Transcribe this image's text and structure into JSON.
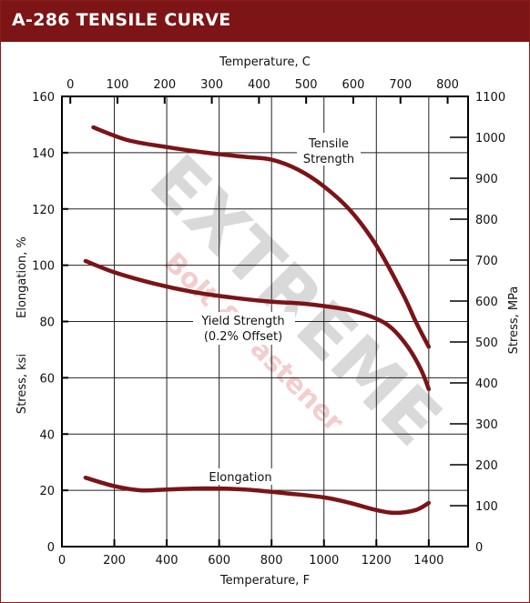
{
  "header": {
    "title": "A-286 TENSILE CURVE"
  },
  "watermark": {
    "brand": "EXTREME",
    "sub": "Bolt & Fastener"
  },
  "chart_data": {
    "type": "line",
    "title": "A-286 TENSILE CURVE",
    "x_bottom": {
      "label": "Temperature,  F",
      "ticks": [
        "0",
        "200",
        "400",
        "600",
        "800",
        "1000",
        "1200",
        "1400"
      ],
      "range": [
        0,
        1550
      ]
    },
    "x_top": {
      "label": "Temperature,  C",
      "ticks": [
        "0",
        "100",
        "200",
        "300",
        "400",
        "500",
        "600",
        "700",
        "800"
      ]
    },
    "y_left": {
      "label_elongation": "Elongation, %",
      "label_stress": "Stress, ksi",
      "ticks": [
        "0",
        "20",
        "40",
        "60",
        "80",
        "100",
        "120",
        "140",
        "160"
      ],
      "range": [
        0,
        160
      ]
    },
    "y_right": {
      "label": "Stress, MPa",
      "ticks": [
        "0",
        "100",
        "200",
        "300",
        "400",
        "500",
        "600",
        "700",
        "800",
        "900",
        "1000",
        "1100"
      ],
      "range": [
        0,
        1100
      ]
    },
    "grid": true,
    "annotations": {
      "tensile_1": "Tensile",
      "tensile_2": "Strength",
      "yield_1": "Yield Strength",
      "yield_2": "(0.2% Offset)",
      "elongation": "Elongation"
    },
    "series": [
      {
        "key": "tensile",
        "color": "#7b1417",
        "x": [
          120,
          250,
          400,
          550,
          700,
          800,
          900,
          1000,
          1100,
          1200,
          1300,
          1350,
          1400
        ],
        "y": [
          149,
          144.5,
          142,
          140,
          138.5,
          137.5,
          134,
          128,
          119.5,
          107,
          90,
          80,
          71
        ]
      },
      {
        "key": "yield",
        "color": "#7b1417",
        "x": [
          90,
          200,
          350,
          500,
          650,
          800,
          900,
          1000,
          1100,
          1200,
          1260,
          1320,
          1370,
          1400
        ],
        "y": [
          101.5,
          97.5,
          93.5,
          90.5,
          88.5,
          87,
          86.5,
          85.5,
          84,
          81,
          77.5,
          71,
          63,
          56
        ]
      },
      {
        "key": "elongation",
        "color": "#7b1417",
        "x": [
          90,
          200,
          300,
          400,
          550,
          700,
          850,
          1000,
          1100,
          1200,
          1270,
          1350,
          1400
        ],
        "y": [
          24.5,
          21.5,
          20,
          20.3,
          20.7,
          20.3,
          19,
          17.5,
          15.5,
          13,
          12,
          13,
          15.5
        ]
      }
    ]
  }
}
